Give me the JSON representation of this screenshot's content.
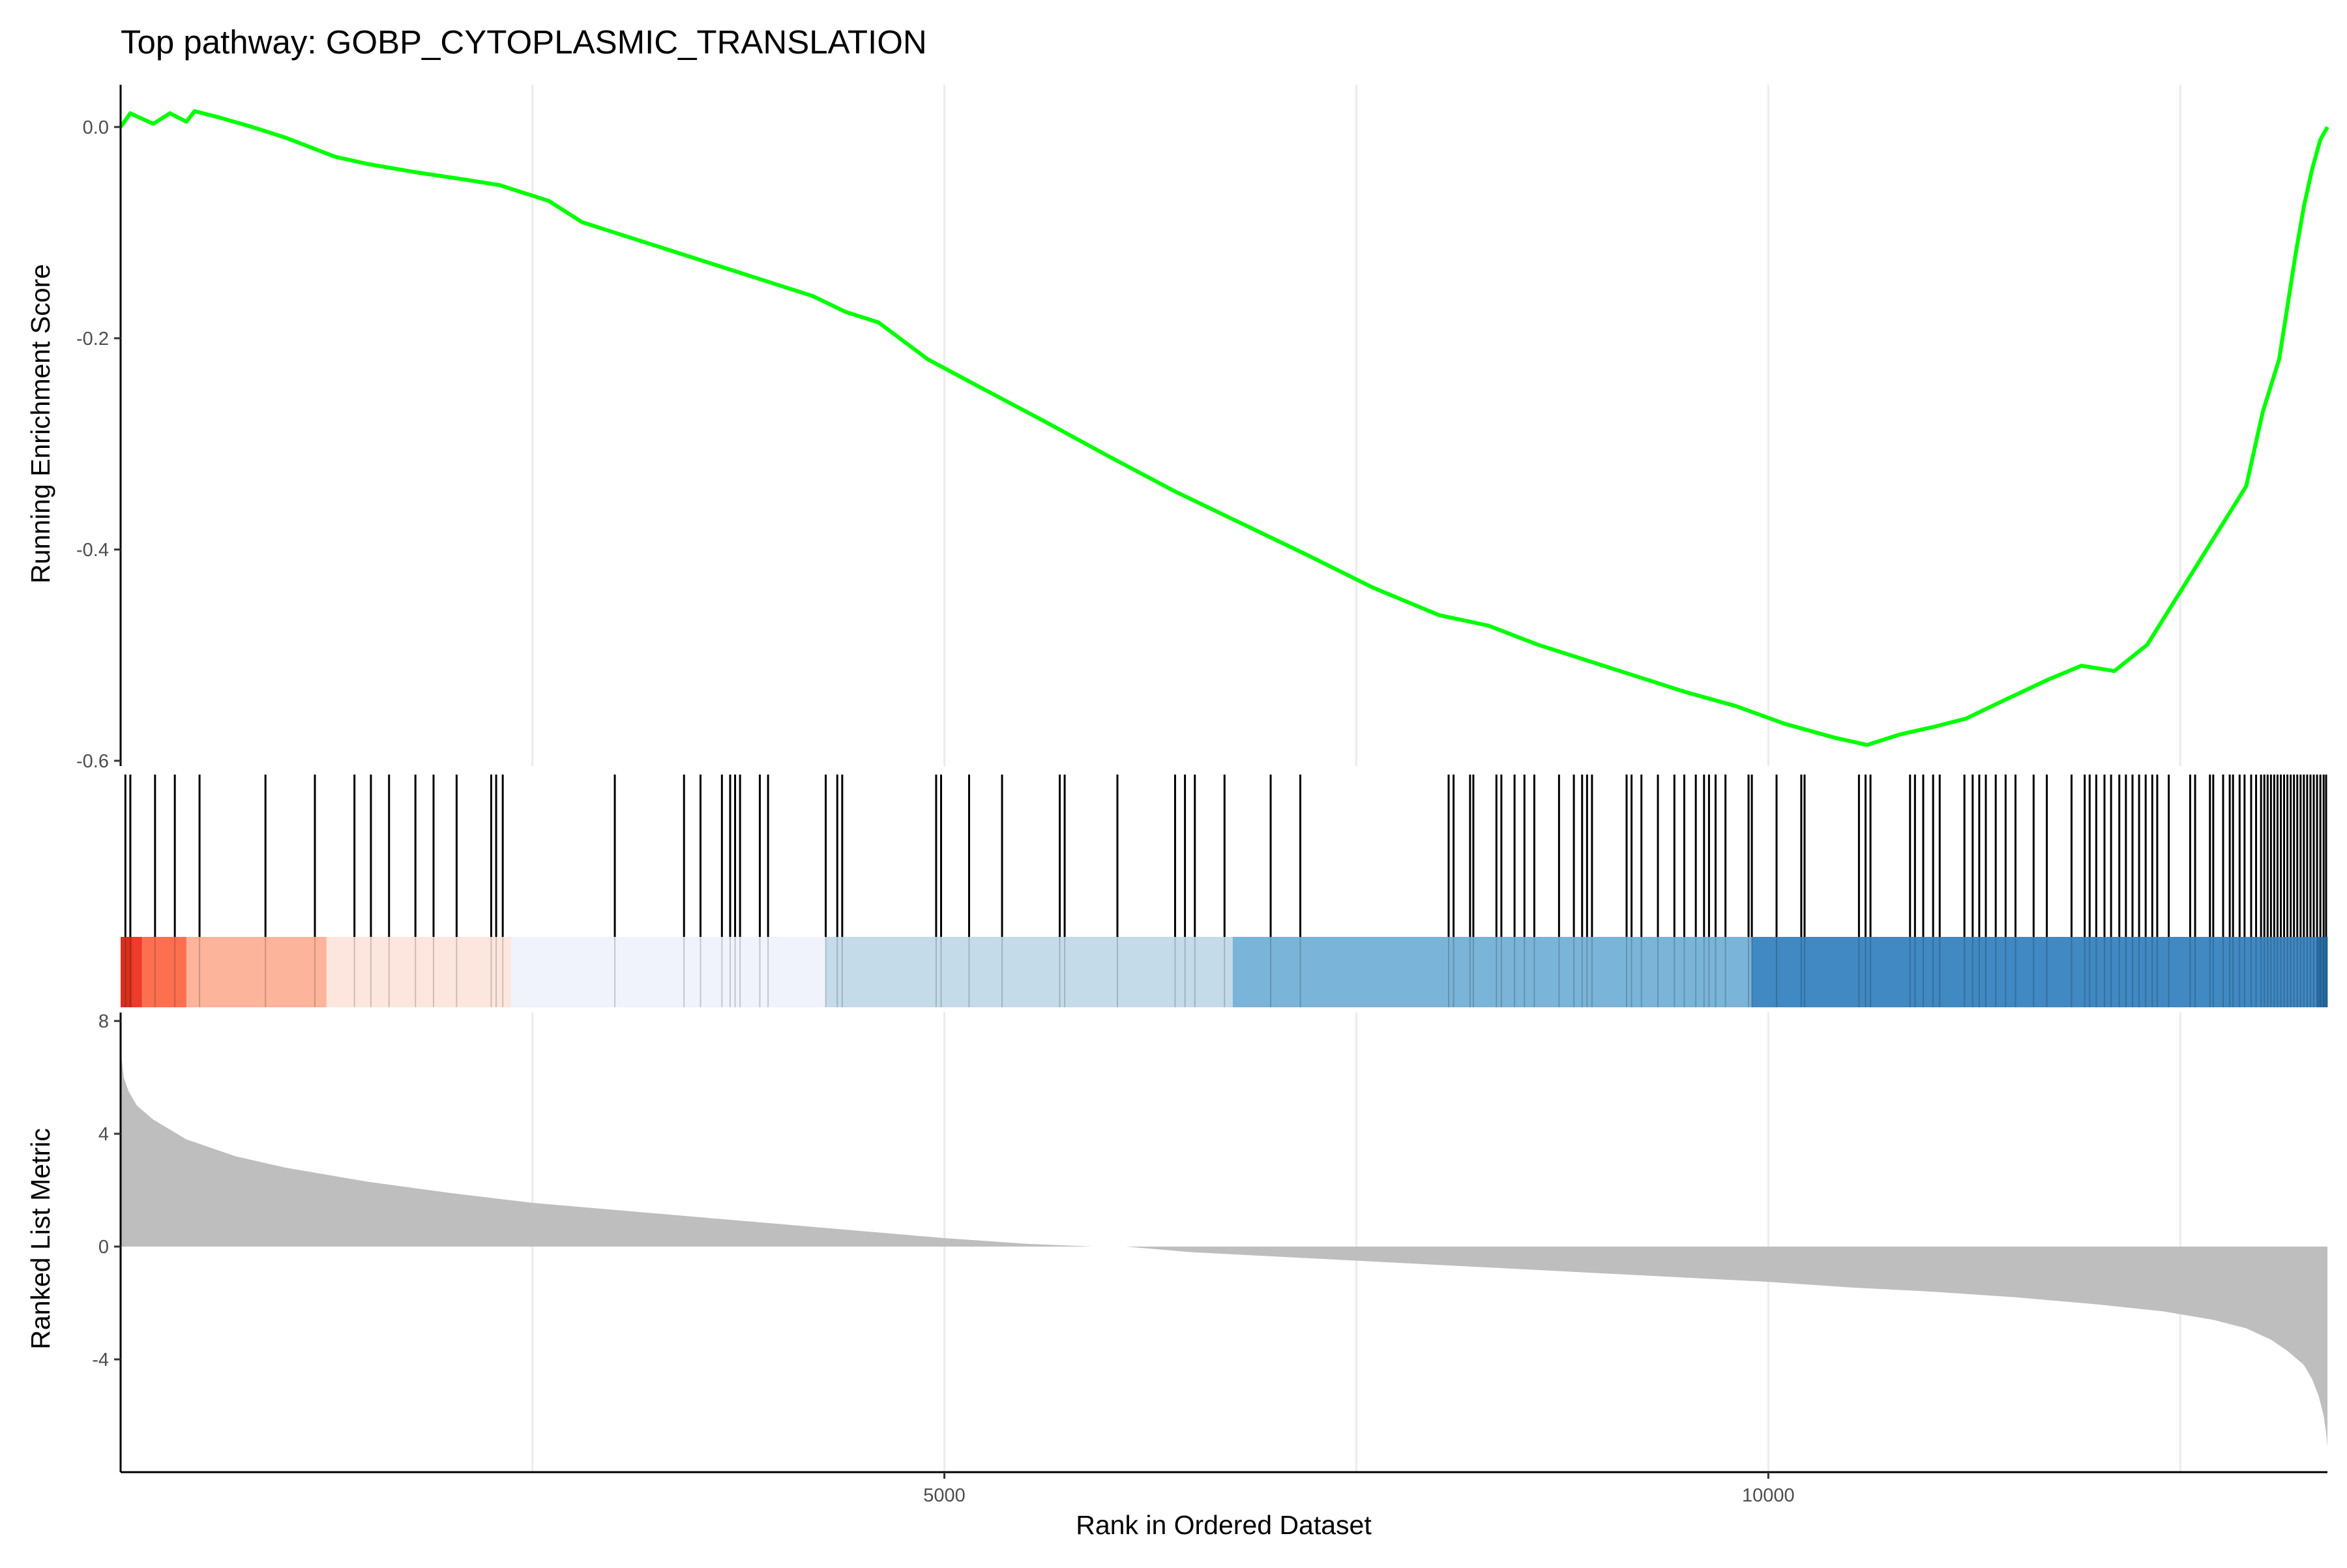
{
  "chart_data": {
    "type": "line",
    "title": "Top pathway: GOBP_CYTOPLASMIC_TRANSLATION",
    "xlabel": "Rank in Ordered Dataset",
    "xlim": [
      1,
      13393
    ],
    "x_ticks": [
      5000,
      10000
    ],
    "x_tick_labels": [
      "5000",
      "10000"
    ],
    "grid": "vertical major gridlines",
    "panels": [
      {
        "name": "running-enrichment",
        "type": "line",
        "ylabel": "Running Enrichment Score",
        "ylim": [
          -0.605,
          0.04
        ],
        "y_ticks": [
          0.0,
          -0.2,
          -0.4,
          -0.6
        ],
        "y_tick_labels": [
          "0.0",
          "-0.2",
          "-0.4",
          "-0.6"
        ],
        "line_color": "#00ff00",
        "x": [
          1,
          60,
          100,
          200,
          300,
          400,
          450,
          600,
          800,
          900,
          1000,
          1100,
          1200,
          1300,
          1500,
          1800,
          2100,
          2300,
          2600,
          2800,
          3000,
          3300,
          3600,
          4000,
          4200,
          4400,
          4600,
          4900,
          5200,
          5600,
          6000,
          6400,
          6800,
          7200,
          7600,
          8000,
          8300,
          8600,
          8900,
          9200,
          9500,
          9800,
          10100,
          10400,
          10600,
          10800,
          11000,
          11200,
          11400,
          11700,
          11900,
          12100,
          12300,
          12500,
          12700,
          12900,
          13000,
          13100,
          13150,
          13200,
          13250,
          13300,
          13350,
          13393
        ],
        "y": [
          0.0,
          0.013,
          0.01,
          0.003,
          0.013,
          0.005,
          0.015,
          0.009,
          0.0,
          -0.005,
          -0.01,
          -0.016,
          -0.022,
          -0.028,
          -0.035,
          -0.043,
          -0.05,
          -0.055,
          -0.07,
          -0.09,
          -0.1,
          -0.115,
          -0.13,
          -0.15,
          -0.16,
          -0.175,
          -0.185,
          -0.22,
          -0.245,
          -0.278,
          -0.312,
          -0.345,
          -0.375,
          -0.405,
          -0.436,
          -0.462,
          -0.472,
          -0.49,
          -0.505,
          -0.52,
          -0.535,
          -0.548,
          -0.565,
          -0.578,
          -0.585,
          -0.575,
          -0.568,
          -0.56,
          -0.545,
          -0.523,
          -0.51,
          -0.515,
          -0.49,
          -0.44,
          -0.39,
          -0.34,
          -0.27,
          -0.22,
          -0.17,
          -0.12,
          -0.075,
          -0.04,
          -0.012,
          0.0
        ]
      },
      {
        "name": "hit-positions",
        "type": "rug",
        "hits": [
          30,
          60,
          210,
          330,
          480,
          880,
          1180,
          1420,
          1520,
          1630,
          1790,
          1900,
          2040,
          2250,
          2280,
          2320,
          3000,
          3420,
          3520,
          3650,
          3700,
          3730,
          3760,
          3880,
          3930,
          4280,
          4350,
          4380,
          4950,
          4980,
          5150,
          5350,
          5700,
          5730,
          6050,
          6400,
          6460,
          6520,
          6700,
          6980,
          7160,
          8060,
          8090,
          8190,
          8210,
          8350,
          8380,
          8460,
          8520,
          8580,
          8730,
          8820,
          8870,
          8900,
          8930,
          9140,
          9170,
          9230,
          9330,
          9430,
          9490,
          9560,
          9610,
          9640,
          9680,
          9740,
          9880,
          9900,
          10050,
          10200,
          10220,
          10550,
          10590,
          10620,
          10860,
          10890,
          10940,
          11000,
          11040,
          11190,
          11240,
          11280,
          11320,
          11380,
          11440,
          11500,
          11610,
          11690,
          11840,
          11920,
          11950,
          11990,
          12040,
          12080,
          12130,
          12170,
          12210,
          12250,
          12290,
          12330,
          12360,
          12430,
          12560,
          12590,
          12680,
          12700,
          12760,
          12800,
          12820,
          12860,
          12890,
          12930,
          12960,
          12990,
          13010,
          13030,
          13050,
          13070,
          13090,
          13110,
          13130,
          13150,
          13170,
          13190,
          13210,
          13230,
          13250,
          13270,
          13290,
          13310,
          13330,
          13350,
          13370,
          13385
        ]
      },
      {
        "name": "ranked-metric",
        "type": "area",
        "ylabel": "Ranked List Metric",
        "ylim": [
          -8.0,
          8.3
        ],
        "y_ticks": [
          8,
          4,
          0,
          -4
        ],
        "y_tick_labels": [
          "8",
          "4",
          "0",
          "-4"
        ],
        "fill_color": "#bebebe",
        "x": [
          1,
          20,
          50,
          100,
          200,
          400,
          700,
          1000,
          1500,
          2000,
          2500,
          3000,
          3500,
          4000,
          4500,
          5000,
          5500,
          5900,
          6100,
          6500,
          7000,
          7500,
          8000,
          8500,
          9000,
          9500,
          10000,
          10500,
          11000,
          11500,
          12000,
          12400,
          12700,
          12900,
          13050,
          13150,
          13250,
          13300,
          13340,
          13370,
          13385,
          13393
        ],
        "y": [
          7.0,
          6.0,
          5.5,
          5.0,
          4.5,
          3.8,
          3.2,
          2.8,
          2.3,
          1.9,
          1.55,
          1.3,
          1.05,
          0.8,
          0.55,
          0.3,
          0.1,
          0.0,
          0.0,
          -0.2,
          -0.35,
          -0.5,
          -0.65,
          -0.8,
          -0.95,
          -1.1,
          -1.25,
          -1.45,
          -1.6,
          -1.8,
          -2.05,
          -2.3,
          -2.6,
          -2.9,
          -3.3,
          -3.7,
          -4.2,
          -4.7,
          -5.3,
          -6.0,
          -6.6,
          -7.1
        ]
      }
    ],
    "color_band": {
      "x": [
        1,
        70,
        130,
        400,
        1250,
        2370,
        4280,
        6750,
        9900,
        13330,
        13393
      ],
      "colors": [
        "#d7301f",
        "#ef3b2c",
        "#fc7050",
        "#fcb49a",
        "#fde6de",
        "#f0f2fc",
        "#c4dbea",
        "#7ab4d8",
        "#4089c3",
        "#2a6fa6"
      ]
    }
  }
}
